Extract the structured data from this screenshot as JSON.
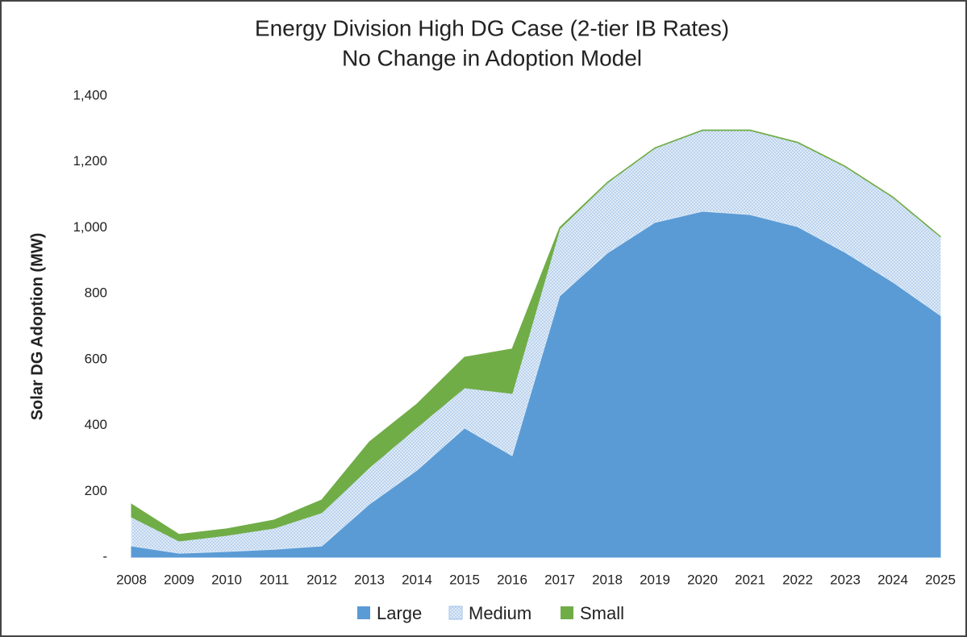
{
  "chart_data": {
    "type": "stacked-area",
    "title": "Energy Division High DG Case (2-tier IB Rates)",
    "subtitle": "No Change in Adoption Model",
    "y_label": "Solar DG Adoption (MW)",
    "categories": [
      "2008",
      "2009",
      "2010",
      "2011",
      "2012",
      "2013",
      "2014",
      "2015",
      "2016",
      "2017",
      "2018",
      "2019",
      "2020",
      "2021",
      "2022",
      "2023",
      "2024",
      "2025"
    ],
    "series": [
      {
        "name": "Large",
        "color": "#5b9bd5",
        "values": [
          34,
          12,
          17,
          24,
          34,
          161,
          264,
          392,
          308,
          793,
          923,
          1016,
          1050,
          1040,
          1003,
          925,
          835,
          734
        ]
      },
      {
        "name": "Medium",
        "color": "#d6e6f6",
        "values": [
          88,
          37,
          49,
          64,
          101,
          111,
          130,
          122,
          189,
          203,
          213,
          225,
          245,
          255,
          255,
          260,
          257,
          238
        ]
      },
      {
        "name": "Small",
        "color": "#70ad47",
        "values": [
          39,
          20,
          20,
          25,
          39,
          78,
          71,
          93,
          135,
          5,
          2,
          2,
          2,
          2,
          2,
          2,
          2,
          2
        ]
      }
    ],
    "ylim": [
      0,
      1400
    ],
    "yticks": [
      {
        "value": 0,
        "label": "-"
      },
      {
        "value": 200,
        "label": "200"
      },
      {
        "value": 400,
        "label": "400"
      },
      {
        "value": 600,
        "label": "600"
      },
      {
        "value": 800,
        "label": "800"
      },
      {
        "value": 1000,
        "label": "1,000"
      },
      {
        "value": 1200,
        "label": "1,200"
      },
      {
        "value": 1400,
        "label": "1,400"
      }
    ],
    "grid": false,
    "legend": "bottom"
  }
}
